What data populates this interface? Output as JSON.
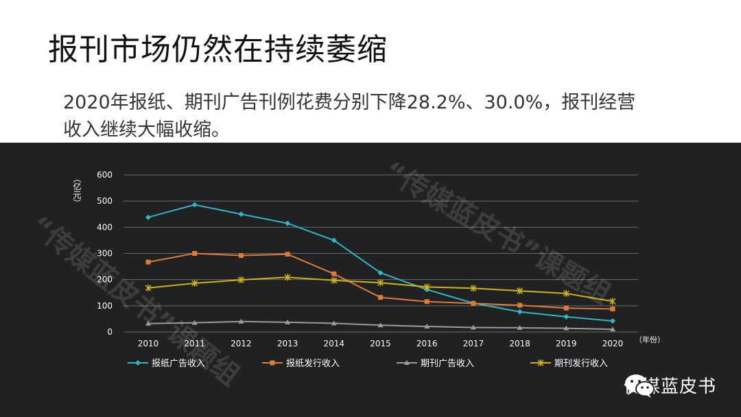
{
  "slide": {
    "title": "报刊市场仍然在持续萎缩",
    "body": "2020年报纸、期刊广告刊例花费分别下降28.2%、30.0%，报刊经营收入继续大幅收缩。"
  },
  "brand": {
    "name": "传媒蓝皮书",
    "icon": "wechat-icon"
  },
  "watermarks": [
    "“传媒蓝皮书”课题组",
    "“传媒蓝皮书”课题组"
  ],
  "colors": {
    "panel_bg": "#1f2123",
    "grid": "#6b6b6b",
    "axis_text": "#ffffff"
  },
  "chart_data": {
    "type": "line",
    "ylabel": "（亿元）",
    "xlabel": "（年份）",
    "ylim": [
      0,
      600
    ],
    "yticks": [
      0,
      100,
      200,
      300,
      400,
      500,
      600
    ],
    "grid": true,
    "legend_position": "bottom",
    "categories": [
      "2010",
      "2011",
      "2012",
      "2013",
      "2014",
      "2015",
      "2016",
      "2017",
      "2018",
      "2019",
      "2020"
    ],
    "series": [
      {
        "name": "报纸广告收入",
        "color": "#2fb8c4",
        "marker": "diamond",
        "values": [
          438,
          486,
          450,
          415,
          350,
          226,
          162,
          110,
          77,
          58,
          42
        ]
      },
      {
        "name": "报纸发行收入",
        "color": "#e07a36",
        "marker": "square",
        "values": [
          267,
          300,
          292,
          297,
          222,
          132,
          116,
          109,
          102,
          91,
          88
        ]
      },
      {
        "name": "期刊广告收入",
        "color": "#9c9c9c",
        "marker": "triangle",
        "values": [
          32,
          35,
          40,
          37,
          33,
          26,
          21,
          17,
          16,
          14,
          10
        ]
      },
      {
        "name": "期刊发行收入",
        "color": "#d4b210",
        "marker": "x",
        "values": [
          168,
          186,
          199,
          209,
          197,
          188,
          172,
          167,
          157,
          147,
          117
        ]
      }
    ]
  }
}
